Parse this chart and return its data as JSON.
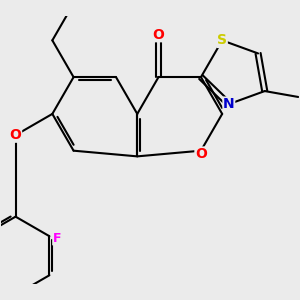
{
  "background_color": "#ebebeb",
  "bond_color": "#000000",
  "bond_width": 1.5,
  "atom_colors": {
    "O": "#ff0000",
    "N": "#0000cd",
    "S": "#cccc00",
    "F": "#ff00ff",
    "C": "#000000"
  },
  "xlim": [
    -3.2,
    3.8
  ],
  "ylim": [
    -3.5,
    2.8
  ]
}
